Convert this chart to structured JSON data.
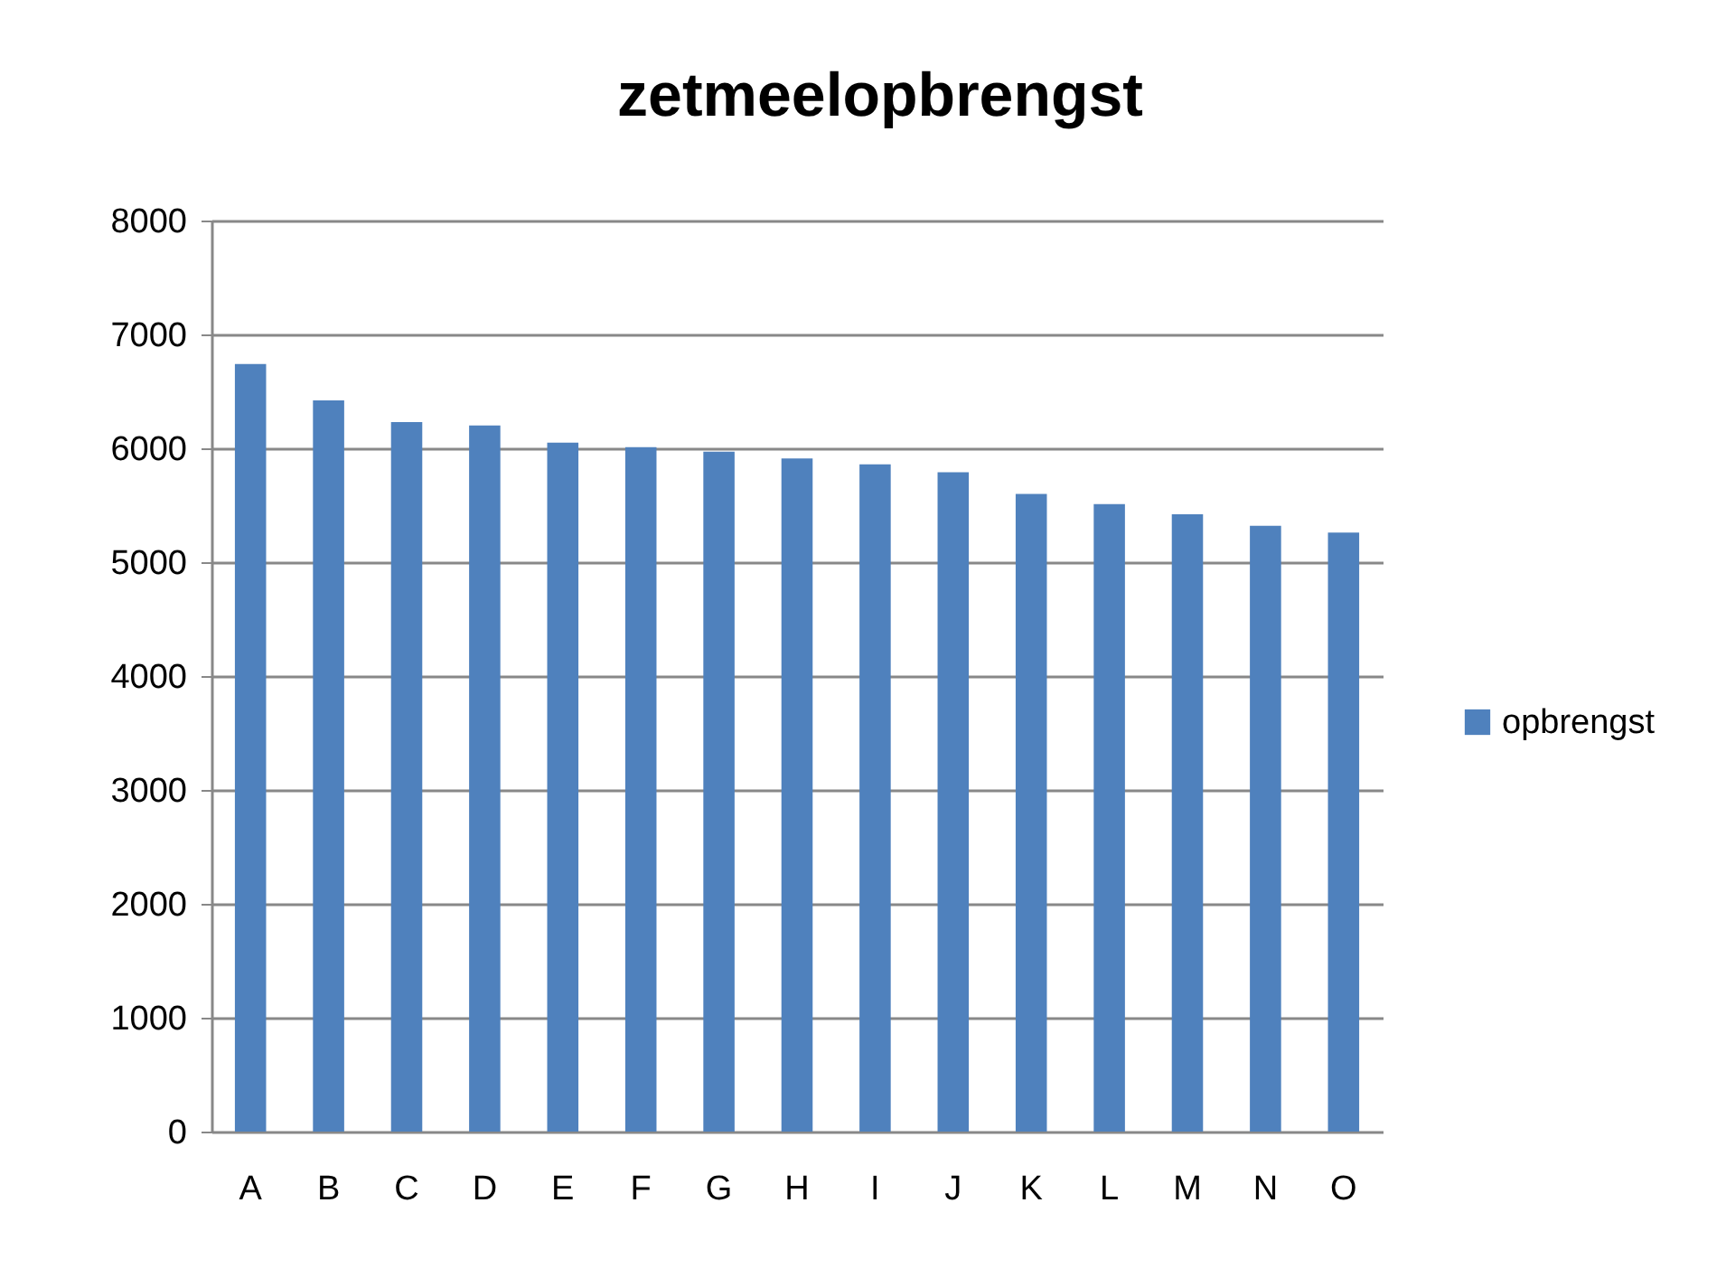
{
  "chart_data": {
    "type": "bar",
    "title": "zetmeelopbrengst",
    "categories": [
      "A",
      "B",
      "C",
      "D",
      "E",
      "F",
      "G",
      "H",
      "I",
      "J",
      "K",
      "L",
      "M",
      "N",
      "O"
    ],
    "series": [
      {
        "name": "opbrengst",
        "color": "#4f81bd",
        "values": [
          6740,
          6420,
          6230,
          6200,
          6050,
          6010,
          5970,
          5910,
          5860,
          5790,
          5600,
          5510,
          5420,
          5320,
          5260
        ]
      }
    ],
    "ylim": [
      0,
      8000
    ],
    "yticks": [
      0,
      1000,
      2000,
      3000,
      4000,
      5000,
      6000,
      7000,
      8000
    ],
    "grid": "y",
    "legend": "right"
  }
}
